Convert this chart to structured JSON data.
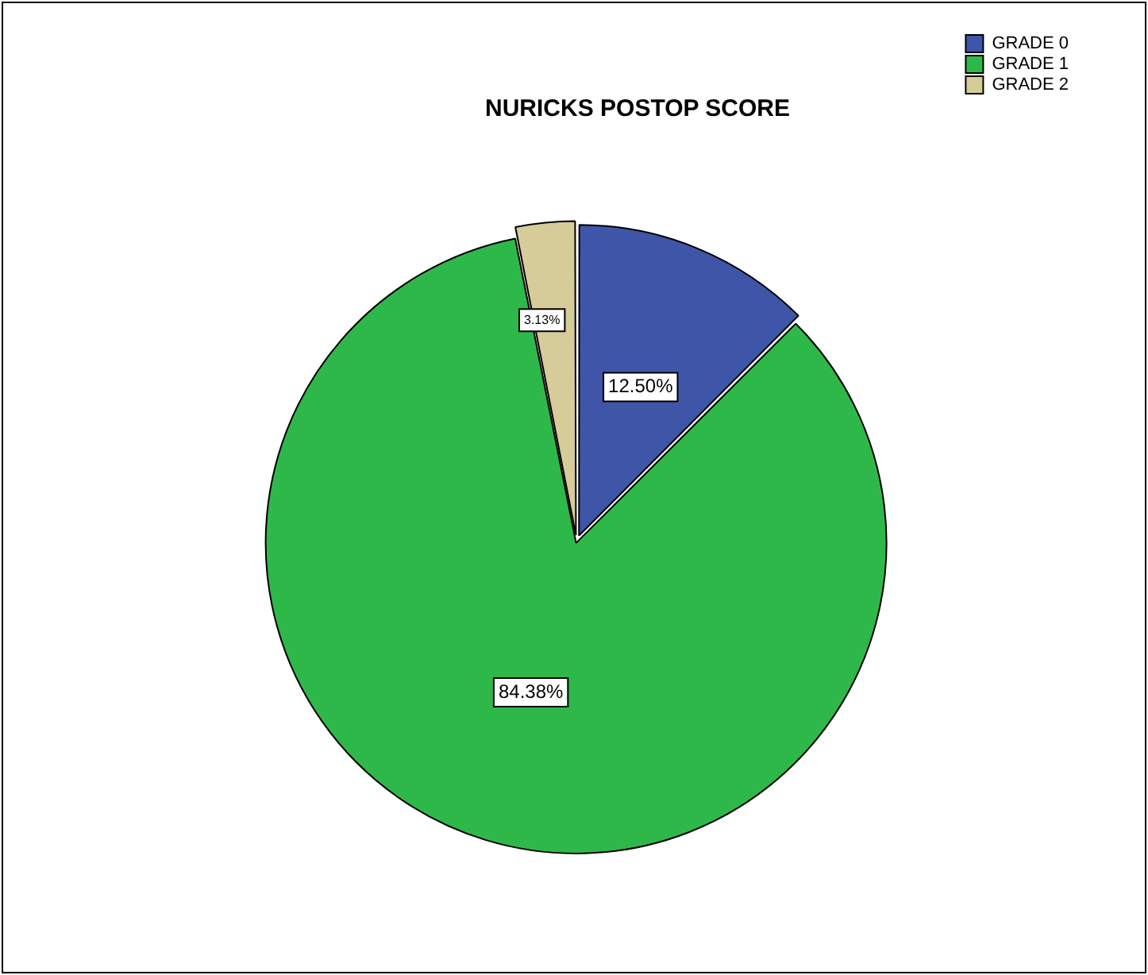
{
  "chart_data": {
    "type": "pie",
    "title": "NURICKS POSTOP SCORE",
    "categories": [
      "GRADE 0",
      "GRADE 1",
      "GRADE 2"
    ],
    "values": [
      12.5,
      84.38,
      3.13
    ],
    "colors": [
      "#3f55a8",
      "#2fb84a",
      "#d6cc9a"
    ],
    "value_labels": [
      "12.50%",
      "84.38%",
      "3.13%"
    ],
    "legend": "top right"
  }
}
